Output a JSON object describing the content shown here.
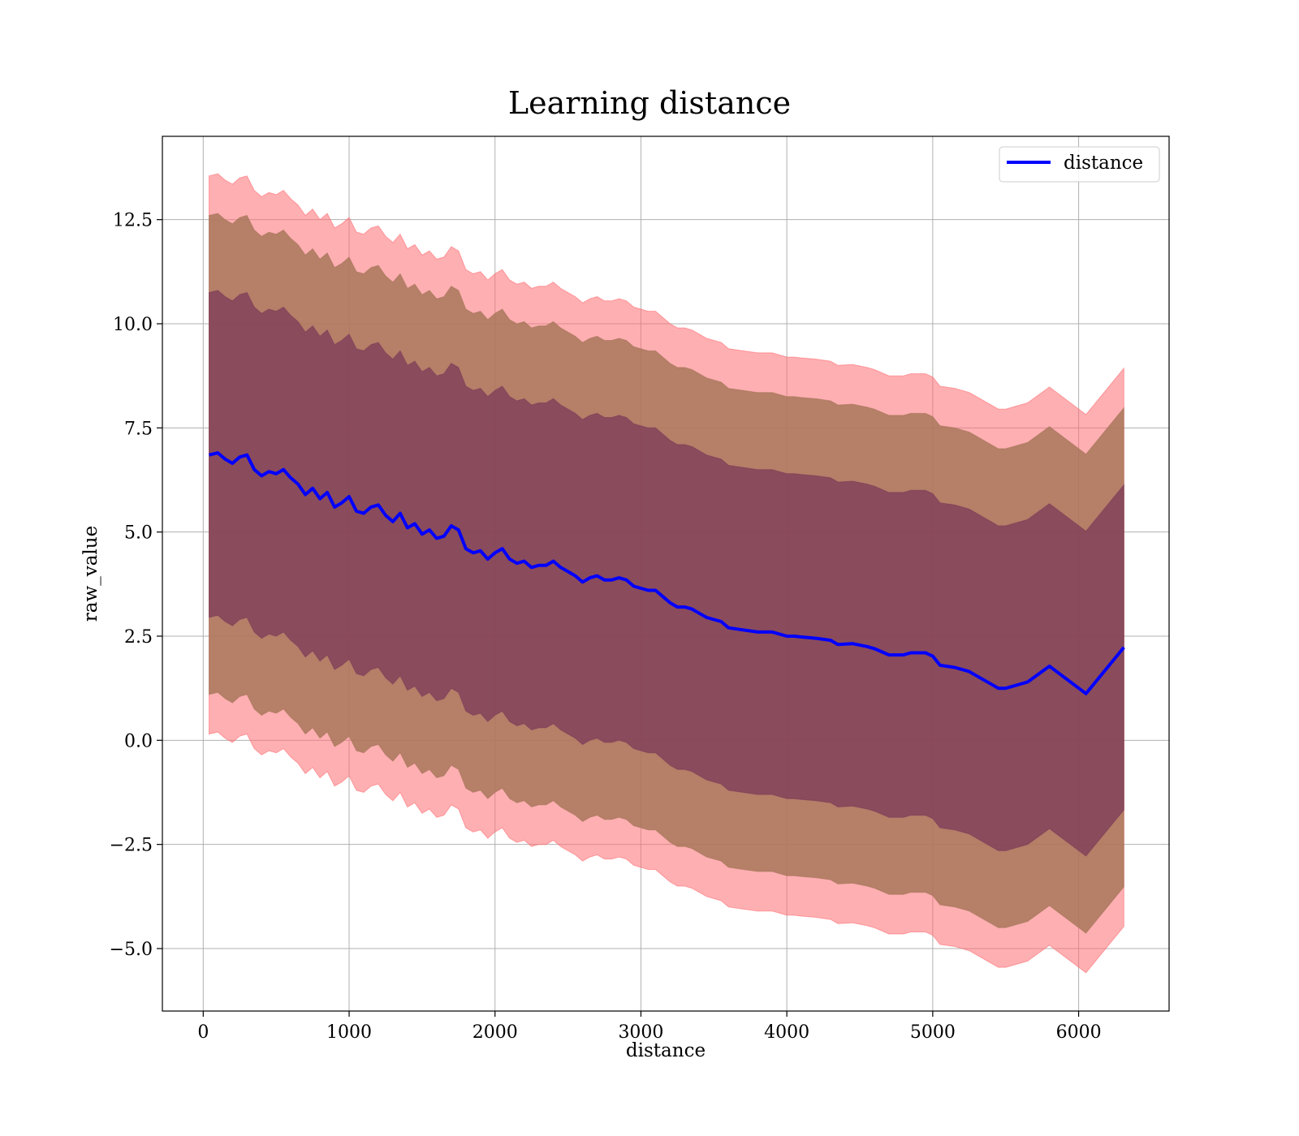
{
  "chart_data": {
    "type": "line",
    "title": "Learning distance",
    "xlabel": "distance",
    "ylabel": "raw_value",
    "xlim": [
      -280,
      6620
    ],
    "ylim": [
      -6.5,
      14.5
    ],
    "xticks": [
      0,
      1000,
      2000,
      3000,
      4000,
      5000,
      6000
    ],
    "xtick_labels": [
      "0",
      "1000",
      "2000",
      "3000",
      "4000",
      "5000",
      "6000"
    ],
    "yticks": [
      -5.0,
      -2.5,
      0.0,
      2.5,
      5.0,
      7.5,
      10.0,
      12.5
    ],
    "ytick_labels": [
      "−5.0",
      "−2.5",
      "0.0",
      "2.5",
      "5.0",
      "7.5",
      "10.0",
      "12.5"
    ],
    "grid": true,
    "legend": {
      "placement": "top-right",
      "entries": [
        "distance"
      ]
    },
    "colors": {
      "line": "#0000ff",
      "band_outer": "#fd6e73",
      "band_middle": "#a8775a",
      "band_inner": "#7c3a58"
    },
    "series": [
      {
        "name": "distance",
        "x": [
          40,
          100,
          150,
          200,
          250,
          300,
          350,
          400,
          450,
          500,
          550,
          600,
          650,
          700,
          750,
          800,
          850,
          900,
          950,
          1000,
          1050,
          1100,
          1150,
          1200,
          1250,
          1300,
          1350,
          1400,
          1450,
          1500,
          1550,
          1600,
          1650,
          1700,
          1750,
          1800,
          1850,
          1900,
          1950,
          2000,
          2050,
          2100,
          2150,
          2200,
          2250,
          2300,
          2350,
          2400,
          2450,
          2500,
          2550,
          2600,
          2650,
          2700,
          2750,
          2800,
          2850,
          2900,
          2950,
          3000,
          3050,
          3100,
          3150,
          3200,
          3250,
          3300,
          3350,
          3400,
          3450,
          3500,
          3550,
          3600,
          3700,
          3800,
          3900,
          4000,
          4050,
          4100,
          4200,
          4300,
          4350,
          4450,
          4550,
          4600,
          4700,
          4800,
          4850,
          4950,
          5000,
          5050,
          5150,
          5250,
          5300,
          5450,
          5500,
          5650,
          5800,
          6050,
          6310
        ],
        "y": [
          6.85,
          6.9,
          6.75,
          6.65,
          6.8,
          6.85,
          6.5,
          6.35,
          6.45,
          6.4,
          6.5,
          6.3,
          6.15,
          5.9,
          6.05,
          5.8,
          5.95,
          5.6,
          5.7,
          5.85,
          5.5,
          5.45,
          5.6,
          5.65,
          5.4,
          5.25,
          5.45,
          5.1,
          5.2,
          4.95,
          5.05,
          4.85,
          4.9,
          5.15,
          5.05,
          4.6,
          4.5,
          4.55,
          4.35,
          4.5,
          4.6,
          4.35,
          4.25,
          4.3,
          4.15,
          4.2,
          4.2,
          4.3,
          4.15,
          4.05,
          3.95,
          3.8,
          3.9,
          3.95,
          3.85,
          3.85,
          3.9,
          3.85,
          3.7,
          3.65,
          3.6,
          3.6,
          3.45,
          3.3,
          3.2,
          3.2,
          3.15,
          3.05,
          2.95,
          2.9,
          2.85,
          2.7,
          2.65,
          2.6,
          2.6,
          2.5,
          2.5,
          2.48,
          2.45,
          2.4,
          2.3,
          2.32,
          2.25,
          2.2,
          2.05,
          2.05,
          2.1,
          2.1,
          2.02,
          1.8,
          1.75,
          1.65,
          1.55,
          1.25,
          1.25,
          1.4,
          1.78,
          1.12,
          2.23
        ]
      }
    ],
    "bands": [
      {
        "kind": "outer",
        "lower_offset": -6.7,
        "upper_offset": 6.7
      },
      {
        "kind": "middle",
        "lower_offset": -5.75,
        "upper_offset": 5.75
      },
      {
        "kind": "inner",
        "lower_offset": -3.9,
        "upper_offset": 3.9
      }
    ]
  }
}
